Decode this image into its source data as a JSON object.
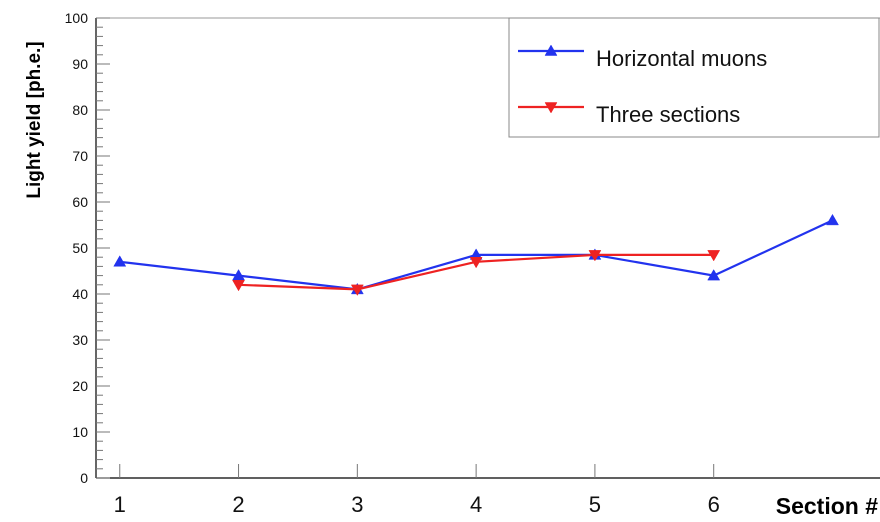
{
  "chart_data": {
    "type": "line",
    "xlabel": "Section #",
    "ylabel": "Light yield [ph.e.]",
    "xlim": [
      0.8,
      7.4
    ],
    "ylim": [
      0,
      100
    ],
    "x_ticks": [
      1,
      2,
      3,
      4,
      5,
      6
    ],
    "y_ticks": [
      0,
      10,
      20,
      30,
      40,
      50,
      60,
      70,
      80,
      90,
      100
    ],
    "grid": false,
    "legend_position": "top-right",
    "series": [
      {
        "name": "Horizontal muons",
        "color": "#2233ee",
        "marker": "triangle-up",
        "x": [
          1,
          2,
          3,
          4,
          5,
          6,
          7
        ],
        "y": [
          47,
          44,
          41,
          48.5,
          48.5,
          44,
          56
        ]
      },
      {
        "name": "Three  sections",
        "color": "#ee2222",
        "marker": "triangle-down",
        "x": [
          2,
          3,
          4,
          5,
          6
        ],
        "y": [
          42,
          41,
          47,
          48.5,
          48.5
        ]
      }
    ]
  }
}
